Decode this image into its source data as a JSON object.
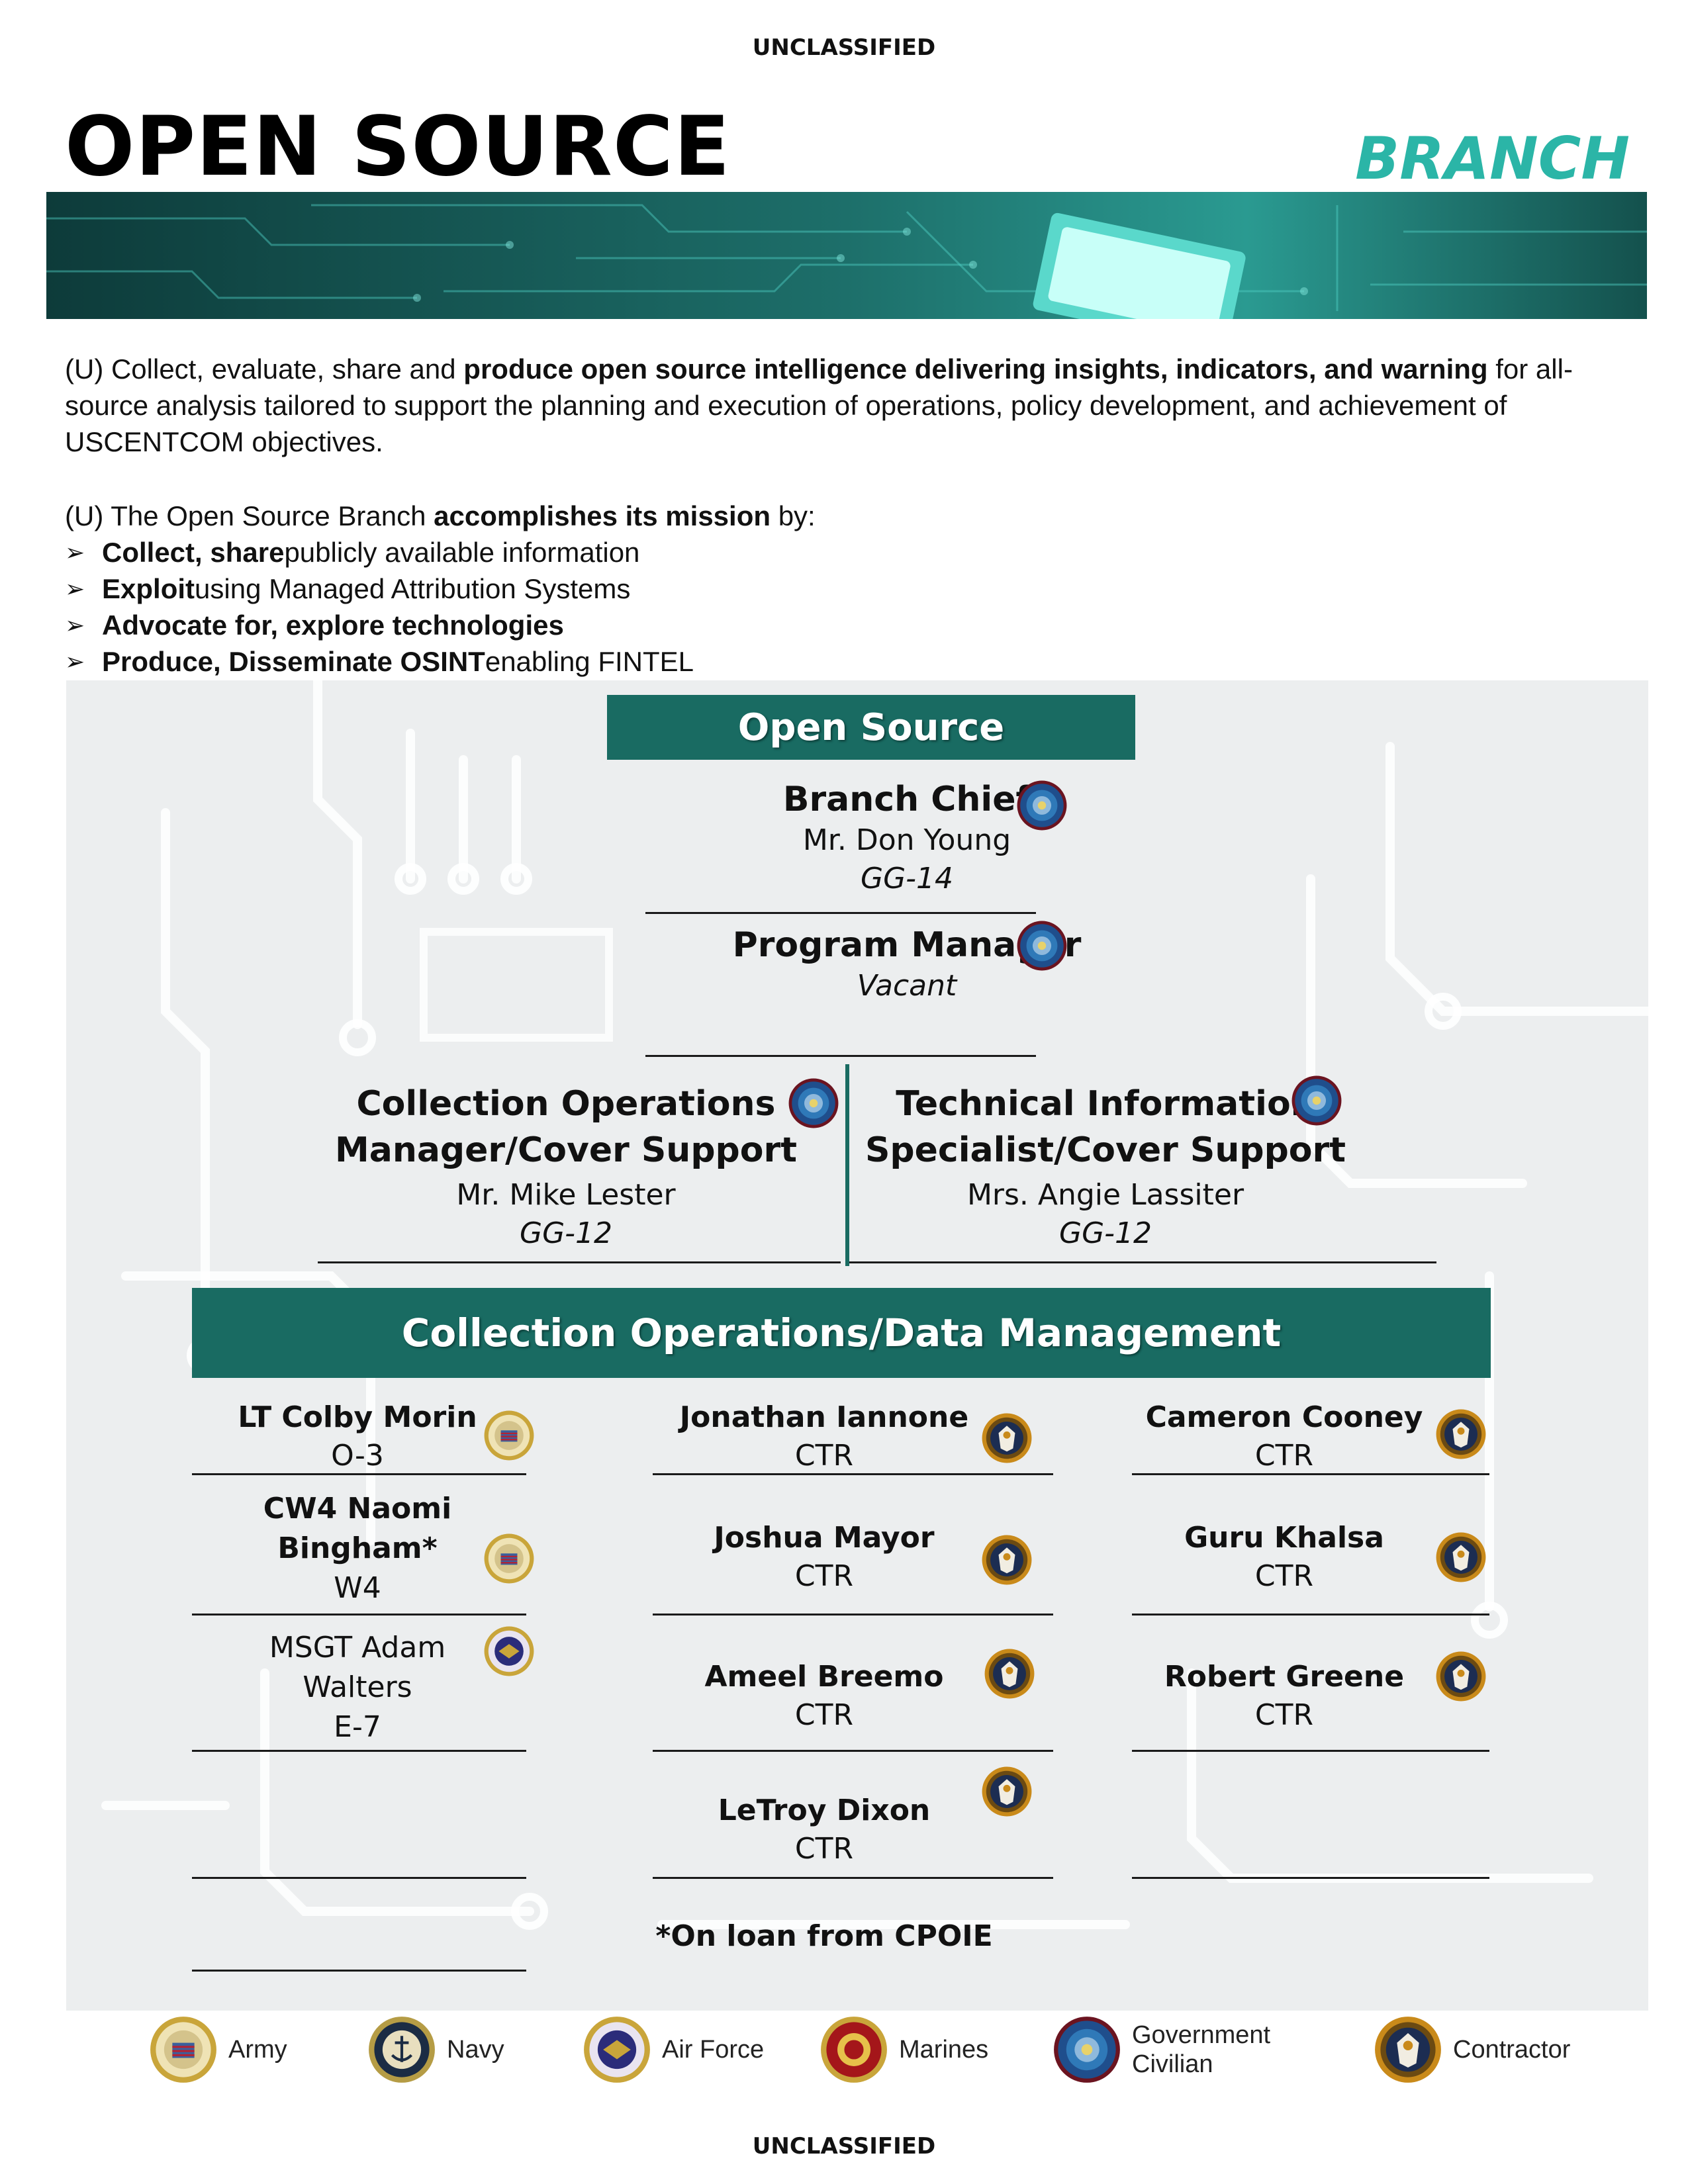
{
  "classification": {
    "top": "UNCLASSIFIED",
    "bottom": "UNCLASSIFIED"
  },
  "header": {
    "title": "OPEN SOURCE",
    "subtitle": "BRANCH"
  },
  "intro": {
    "prefix": "(U) Collect, evaluate, share and ",
    "bold": "produce open source intelligence delivering insights, indicators, and warning",
    "suffix": " for all-source analysis tailored to support the planning and execution of operations, policy development, and achievement of USCENTCOM objectives."
  },
  "mission": {
    "prefix": "(U) The Open Source Branch ",
    "bold": "accomplishes its mission",
    "suffix": " by:",
    "bullets": [
      {
        "bold": "Collect, share",
        "rest": " publicly available information"
      },
      {
        "bold": "Exploit",
        "rest": " using Managed Attribution Systems"
      },
      {
        "bold": "Advocate for, explore technologies",
        "rest": ""
      },
      {
        "bold": "Produce, Disseminate OSINT",
        "rest": " enabling FINTEL"
      }
    ]
  },
  "org": {
    "top_header": "Open Source",
    "chief": {
      "role": "Branch Chief",
      "name": "Mr. Don Young",
      "grade": "GG-14",
      "affiliation": "government-civilian"
    },
    "pm": {
      "role": "Program Manager",
      "name": "Vacant",
      "affiliation": "government-civilian"
    },
    "left": {
      "role_line1": "Collection Operations",
      "role_line2": "Manager/Cover Support",
      "name": "Mr. Mike Lester",
      "grade": "GG-12",
      "affiliation": "government-civilian"
    },
    "right": {
      "role_line1": "Technical Information",
      "role_line2": "Specialist/Cover Support",
      "name": "Mrs. Angie Lassiter",
      "grade": "GG-12",
      "affiliation": "government-civilian"
    },
    "section_header": "Collection Operations/Data Management",
    "col1": [
      {
        "name": "LT Colby Morin",
        "grade": "O-3",
        "affiliation": "army"
      },
      {
        "name_line1": "CW4 Naomi",
        "name_line2": "Bingham*",
        "grade": "W4",
        "affiliation": "army"
      },
      {
        "name_line1": "MSGT Adam",
        "name_line2": "Walters",
        "grade": "E-7",
        "affiliation": "air-force"
      }
    ],
    "col2": [
      {
        "name": "Jonathan Iannone",
        "grade": "CTR",
        "affiliation": "contractor"
      },
      {
        "name": "Joshua Mayor",
        "grade": "CTR",
        "affiliation": "contractor"
      },
      {
        "name": "Ameel Breemo",
        "grade": "CTR",
        "affiliation": "contractor"
      },
      {
        "name": "LeTroy Dixon",
        "grade": "CTR",
        "affiliation": "contractor"
      }
    ],
    "col3": [
      {
        "name": "Cameron Cooney",
        "grade": "CTR",
        "affiliation": "contractor"
      },
      {
        "name": "Guru Khalsa",
        "grade": "CTR",
        "affiliation": "contractor"
      },
      {
        "name": "Robert Greene",
        "grade": "CTR",
        "affiliation": "contractor"
      }
    ],
    "footnote": "*On loan from CPOIE"
  },
  "legend": [
    {
      "label": "Army",
      "icon": "army-seal-icon"
    },
    {
      "label": "Navy",
      "icon": "navy-seal-icon"
    },
    {
      "label": "Air Force",
      "icon": "air-force-seal-icon"
    },
    {
      "label": "Marines",
      "icon": "marines-seal-icon"
    },
    {
      "label_line1": "Government",
      "label_line2": "Civilian",
      "icon": "government-civilian-seal-icon"
    },
    {
      "label": "Contractor",
      "icon": "contractor-seal-icon"
    }
  ],
  "colors": {
    "teal_header": "#196b62",
    "teal_accent": "#2bb5a7"
  }
}
